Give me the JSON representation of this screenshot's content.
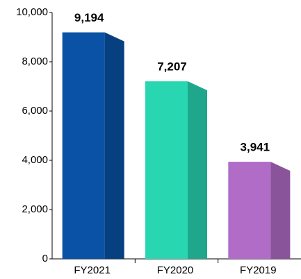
{
  "chart_data": {
    "type": "bar3d",
    "categories": [
      "FY2021",
      "FY2020",
      "FY2019"
    ],
    "values": [
      9194,
      7207,
      3941
    ],
    "value_labels": [
      "9,194",
      "7,207",
      "3,941"
    ],
    "colors": [
      "#0a52a6",
      "#28d6b2",
      "#b06cc6"
    ],
    "ylim": [
      0,
      10000
    ],
    "yticks": [
      0,
      {
        "value": 2000,
        "label": "2,000"
      },
      {
        "value": 4000,
        "label": "4,000"
      },
      {
        "value": 6000,
        "label": "6,000"
      },
      {
        "value": 8000,
        "label": "8,000"
      },
      {
        "value": 10000,
        "label": "10,000"
      }
    ]
  }
}
